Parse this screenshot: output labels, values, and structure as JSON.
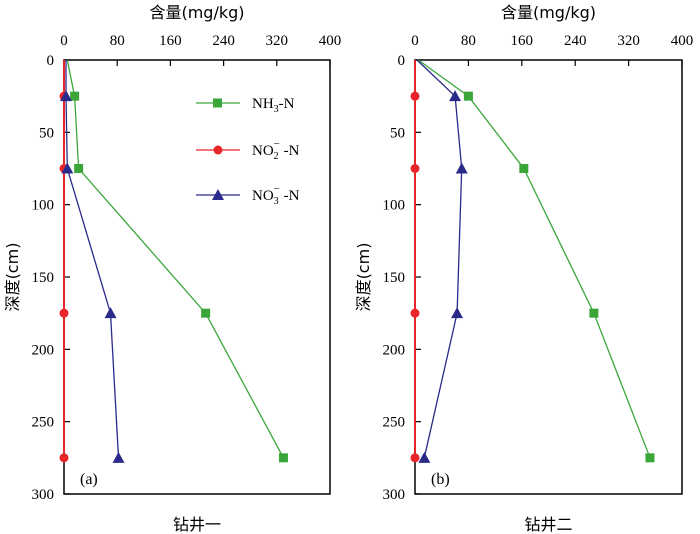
{
  "chart_data": [
    {
      "type": "line",
      "panel_label": "(a)",
      "xlabel_top": "含量(mg/kg)",
      "ylabel": "深度(cm)",
      "xlabel_bottom": "钻井一",
      "xlim": [
        0,
        400
      ],
      "ylim": [
        0,
        300
      ],
      "y_inverted": true,
      "x_axis_position": "top",
      "x_ticks": [
        0,
        80,
        160,
        240,
        320,
        400
      ],
      "y_ticks": [
        0,
        50,
        100,
        150,
        200,
        250,
        300
      ],
      "legend_position": "top-right",
      "series": [
        {
          "name": "NH3-N",
          "color": "#3aa63a",
          "marker": "square",
          "x": [
            5,
            16,
            22,
            213,
            330
          ],
          "y": [
            0,
            25,
            75,
            175,
            275
          ]
        },
        {
          "name": "NO2- -N",
          "color": "#e8262a",
          "marker": "circle",
          "x": [
            0,
            0,
            0,
            0,
            0
          ],
          "y": [
            0,
            25,
            75,
            175,
            275
          ]
        },
        {
          "name": "NO3- -N",
          "color": "#2a2a8a",
          "marker": "triangle",
          "x": [
            3,
            3,
            5,
            70,
            82
          ],
          "y": [
            0,
            25,
            75,
            175,
            275
          ]
        }
      ]
    },
    {
      "type": "line",
      "panel_label": "(b)",
      "xlabel_top": "含量(mg/kg)",
      "ylabel": "深度(cm)",
      "xlabel_bottom": "钻井二",
      "xlim": [
        0,
        400
      ],
      "ylim": [
        0,
        300
      ],
      "y_inverted": true,
      "x_axis_position": "top",
      "x_ticks": [
        0,
        80,
        160,
        240,
        320,
        400
      ],
      "y_ticks": [
        0,
        50,
        100,
        150,
        200,
        250,
        300
      ],
      "series": [
        {
          "name": "NH3-N",
          "color": "#3aa63a",
          "marker": "square",
          "x": [
            5,
            80,
            163,
            268,
            352
          ],
          "y": [
            0,
            25,
            75,
            175,
            275
          ]
        },
        {
          "name": "NO2- -N",
          "color": "#e8262a",
          "marker": "circle",
          "x": [
            0,
            0,
            0,
            0,
            0
          ],
          "y": [
            0,
            25,
            75,
            175,
            275
          ]
        },
        {
          "name": "NO3- -N",
          "color": "#2a2a8a",
          "marker": "triangle",
          "x": [
            3,
            60,
            70,
            63,
            14
          ],
          "y": [
            0,
            25,
            75,
            175,
            275
          ]
        }
      ]
    }
  ],
  "legend": [
    {
      "main": "NH",
      "sub": "3",
      "sup": "",
      "tail": "-N"
    },
    {
      "main": "NO",
      "sub": "2",
      "sup": "−",
      "tail": " -N"
    },
    {
      "main": "NO",
      "sub": "3",
      "sup": "−",
      "tail": " -N"
    }
  ]
}
